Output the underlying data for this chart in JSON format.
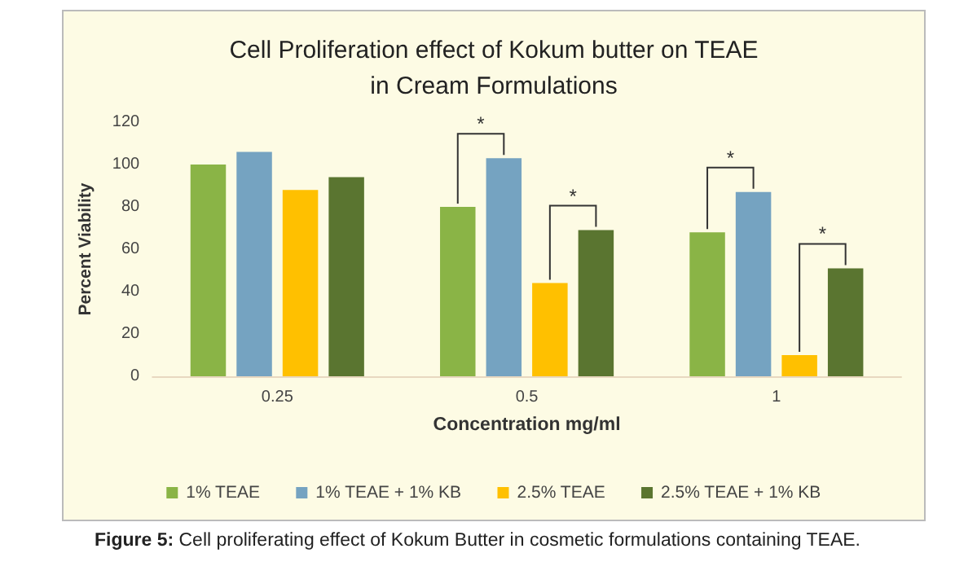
{
  "chart_data": {
    "type": "bar",
    "title": "Cell Proliferation effect of Kokum butter on TEAE\nin Cream Formulations",
    "xlabel": "Concentration mg/ml",
    "ylabel": "Percent Viability",
    "categories": [
      "0.25",
      "0.5",
      "1"
    ],
    "series": [
      {
        "name": "1% TEAE",
        "color": "#8ab446",
        "values": [
          100,
          80,
          68
        ]
      },
      {
        "name": "1% TEAE + 1% KB",
        "color": "#75a3c1",
        "values": [
          106,
          103,
          87
        ]
      },
      {
        "name": "2.5% TEAE",
        "color": "#ffc000",
        "values": [
          88,
          44,
          10
        ]
      },
      {
        "name": "2.5% TEAE + 1% KB",
        "color": "#5a7530",
        "values": [
          94,
          69,
          51
        ]
      }
    ],
    "ylim": [
      0,
      120
    ],
    "yticks": [
      0,
      20,
      40,
      60,
      80,
      100,
      120
    ],
    "grid": false,
    "legend": "bottom",
    "annotations": [
      {
        "text": "*",
        "x": "0.5",
        "y": 103
      },
      {
        "text": "*",
        "x": "0.5",
        "y": 69
      },
      {
        "text": "*",
        "x": "1",
        "y": 87
      },
      {
        "text": "*",
        "x": "1",
        "y": 51
      },
      "Figure 5: Cell proliferating effect of Kokum Butter in cosmetic formulations containing TEAE."
    ]
  }
}
